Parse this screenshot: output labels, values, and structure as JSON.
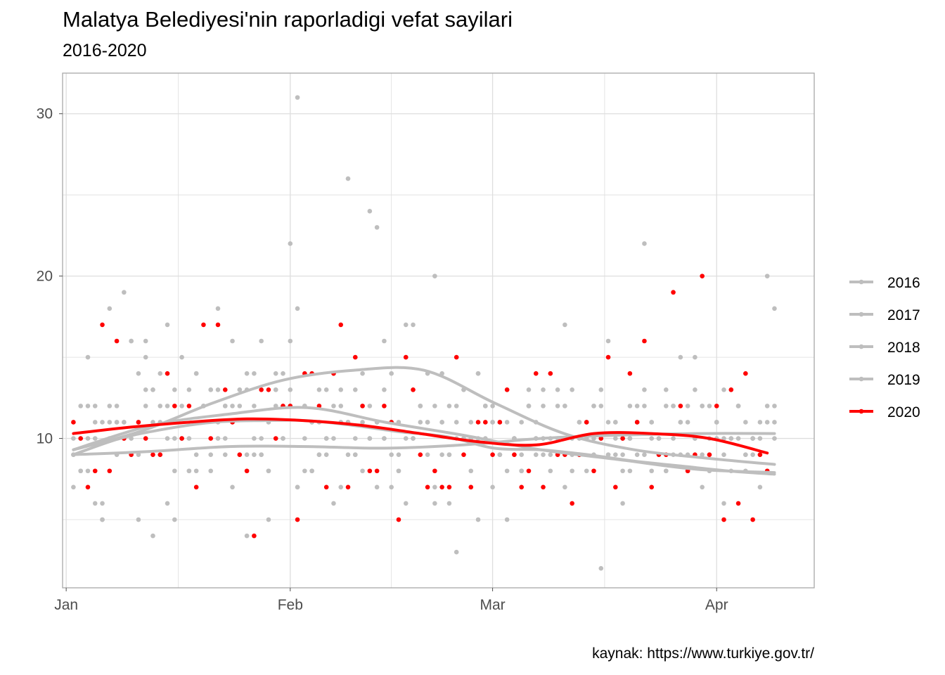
{
  "chart_data": {
    "type": "scatter",
    "title": "Malatya Belediyesi'nin raporladigi vefat sayilari",
    "subtitle": "2016-2020",
    "caption": "kaynak: https://www.turkiye.gov.tr/",
    "xlabel": "",
    "ylabel": "",
    "x_unit": "day of year",
    "xlim": [
      -0.5,
      103.5
    ],
    "ylim": [
      0.8,
      32.5
    ],
    "x_ticks": [
      {
        "value": 0,
        "label": "Jan"
      },
      {
        "value": 31,
        "label": "Feb"
      },
      {
        "value": 59,
        "label": "Mar"
      },
      {
        "value": 90,
        "label": "Apr"
      }
    ],
    "y_ticks": [
      {
        "value": 10,
        "label": "10"
      },
      {
        "value": 20,
        "label": "20"
      },
      {
        "value": 30,
        "label": "30"
      }
    ],
    "y_minor": [
      5,
      15,
      25
    ],
    "x_minor": [
      15.5,
      45,
      74.5
    ],
    "legend_position": "right",
    "colors": {
      "background_years": "#bebebe",
      "highlight": "#ff0000",
      "grid": "#dedede",
      "frame": "#a8a8a8"
    },
    "series": [
      {
        "name": "2016",
        "color": "#bebebe",
        "x": [
          1,
          2,
          3,
          4,
          5,
          6,
          7,
          8,
          9,
          10,
          11,
          12,
          13,
          14,
          15,
          16,
          17,
          18,
          19,
          20,
          21,
          22,
          23,
          24,
          25,
          26,
          27,
          28,
          29,
          30,
          31,
          32,
          33,
          34,
          35,
          36,
          37,
          38,
          39,
          40,
          41,
          42,
          43,
          44,
          45,
          46,
          47,
          48,
          49,
          50,
          51,
          52,
          53,
          54,
          55,
          56,
          57,
          58,
          59,
          60,
          61,
          62,
          63,
          64,
          65,
          66,
          67,
          68,
          69,
          70,
          71,
          72,
          73,
          74,
          75,
          76,
          77,
          78,
          79,
          80,
          81,
          82,
          83,
          84,
          85,
          86,
          87,
          88,
          89,
          90,
          91,
          92,
          93,
          94,
          95,
          96,
          97,
          98
        ],
        "y": [
          9,
          12,
          10,
          6,
          11,
          18,
          12,
          11,
          10,
          14,
          15,
          13,
          11,
          12,
          8,
          10,
          13,
          14,
          12,
          9,
          13,
          12,
          16,
          13,
          9,
          14,
          9,
          11,
          12,
          10,
          13,
          7,
          12,
          8,
          11,
          9,
          12,
          13,
          11,
          10,
          8,
          12,
          11,
          10,
          7,
          9,
          15,
          13,
          12,
          11,
          6,
          11,
          9,
          12,
          10,
          11,
          5,
          10,
          12,
          9,
          11,
          10,
          8,
          12,
          10,
          9,
          8,
          13,
          12,
          10,
          11,
          8,
          9,
          12,
          9,
          10,
          6,
          10,
          11,
          9,
          8,
          10,
          12,
          9,
          11,
          8,
          13,
          9,
          8,
          10,
          9,
          8,
          10,
          8,
          9,
          7,
          8,
          10
        ],
        "trend": [
          9.3,
          10.8,
          11.5,
          11.9,
          11.0,
          10.2,
          9.3,
          8.7,
          8.1,
          7.9
        ]
      },
      {
        "name": "2017",
        "color": "#bebebe",
        "x": [
          1,
          2,
          3,
          4,
          5,
          6,
          7,
          8,
          9,
          10,
          11,
          12,
          13,
          14,
          15,
          16,
          17,
          18,
          19,
          20,
          21,
          22,
          23,
          24,
          25,
          26,
          27,
          28,
          29,
          30,
          31,
          32,
          33,
          34,
          35,
          36,
          37,
          38,
          39,
          40,
          41,
          42,
          43,
          44,
          45,
          46,
          47,
          48,
          49,
          50,
          51,
          52,
          53,
          54,
          55,
          56,
          57,
          58,
          59,
          60,
          61,
          62,
          63,
          64,
          65,
          66,
          67,
          68,
          69,
          70,
          71,
          72,
          73,
          74,
          75,
          76,
          77,
          78,
          79,
          80,
          81,
          82,
          83,
          84,
          85,
          86,
          87,
          88,
          89,
          90,
          91,
          92,
          93,
          94,
          95,
          96,
          97,
          98
        ],
        "y": [
          7,
          8,
          15,
          11,
          5,
          11,
          9,
          19,
          16,
          5,
          16,
          11,
          14,
          10,
          13,
          15,
          10,
          8,
          12,
          8,
          18,
          12,
          11,
          13,
          14,
          9,
          16,
          8,
          13,
          12,
          16,
          18,
          10,
          11,
          9,
          10,
          14,
          7,
          9,
          13,
          12,
          10,
          11,
          16,
          14,
          8,
          10,
          17,
          11,
          9,
          12,
          14,
          6,
          11,
          13,
          10,
          10,
          12,
          11,
          9,
          5,
          10,
          9,
          13,
          10,
          12,
          9,
          10,
          7,
          8,
          9,
          11,
          12,
          10,
          9,
          11,
          8,
          10,
          9,
          12,
          11,
          10,
          13,
          12,
          9,
          11,
          10,
          12,
          9,
          11,
          10,
          13,
          12,
          11,
          10,
          10,
          11,
          11
        ],
        "trend": [
          9.0,
          9.2,
          9.5,
          9.5,
          9.4,
          9.6,
          10.0,
          10.2,
          10.3,
          10.3
        ]
      },
      {
        "name": "2018",
        "color": "#bebebe",
        "x": [
          1,
          2,
          3,
          4,
          5,
          6,
          7,
          8,
          9,
          10,
          11,
          12,
          13,
          14,
          15,
          16,
          17,
          18,
          19,
          20,
          21,
          22,
          23,
          24,
          25,
          26,
          27,
          28,
          29,
          30,
          31,
          32,
          33,
          34,
          35,
          36,
          37,
          38,
          39,
          40,
          41,
          42,
          43,
          44,
          45,
          46,
          47,
          48,
          49,
          50,
          51,
          52,
          53,
          54,
          55,
          56,
          57,
          58,
          59,
          60,
          61,
          62,
          63,
          64,
          65,
          66,
          67,
          68,
          69,
          70,
          71,
          72,
          73,
          74,
          75,
          76,
          77,
          78,
          79,
          80,
          81,
          82,
          83,
          84,
          85,
          86,
          87,
          88,
          89,
          90,
          91,
          92,
          93,
          94,
          95,
          96,
          97,
          98
        ],
        "y": [
          9,
          10,
          8,
          12,
          6,
          10,
          11,
          11,
          16,
          9,
          12,
          13,
          9,
          17,
          10,
          12,
          8,
          9,
          12,
          13,
          11,
          10,
          12,
          9,
          13,
          12,
          10,
          8,
          13,
          14,
          12,
          31,
          8,
          11,
          9,
          13,
          10,
          11,
          26,
          9,
          11,
          24,
          23,
          10,
          9,
          11,
          17,
          10,
          12,
          11,
          20,
          9,
          12,
          3,
          10,
          7,
          14,
          12,
          11,
          9,
          8,
          10,
          11,
          12,
          9,
          13,
          10,
          12,
          17,
          9,
          10,
          11,
          10,
          2,
          16,
          11,
          9,
          12,
          11,
          22,
          10,
          9,
          8,
          12,
          11,
          9,
          15,
          12,
          10,
          11,
          6,
          10,
          12,
          9,
          10,
          11,
          12,
          12
        ],
        "trend": [
          9.3,
          10.5,
          12.2,
          13.6,
          14.2,
          14.2,
          12.2,
          10.3,
          9.3,
          8.8,
          8.4
        ]
      },
      {
        "name": "2019",
        "color": "#bebebe",
        "x": [
          1,
          2,
          3,
          4,
          5,
          6,
          7,
          8,
          9,
          10,
          11,
          12,
          13,
          14,
          15,
          16,
          17,
          18,
          19,
          20,
          21,
          22,
          23,
          24,
          25,
          26,
          27,
          28,
          29,
          30,
          31,
          32,
          33,
          34,
          35,
          36,
          37,
          38,
          39,
          40,
          41,
          42,
          43,
          44,
          45,
          46,
          47,
          48,
          49,
          50,
          51,
          52,
          53,
          54,
          55,
          56,
          57,
          58,
          59,
          60,
          61,
          62,
          63,
          64,
          65,
          66,
          67,
          68,
          69,
          70,
          71,
          72,
          73,
          74,
          75,
          76,
          77,
          78,
          79,
          80,
          81,
          82,
          83,
          84,
          85,
          86,
          87,
          88,
          89,
          90,
          91,
          92,
          93,
          94,
          95,
          96,
          97,
          98
        ],
        "y": [
          10,
          8,
          12,
          10,
          5,
          12,
          11,
          10,
          9,
          11,
          13,
          4,
          12,
          6,
          5,
          10,
          8,
          14,
          11,
          13,
          10,
          9,
          7,
          12,
          4,
          10,
          9,
          5,
          14,
          10,
          22,
          7,
          12,
          8,
          13,
          10,
          6,
          12,
          11,
          9,
          14,
          10,
          7,
          13,
          11,
          8,
          6,
          10,
          12,
          14,
          7,
          11,
          9,
          10,
          13,
          8,
          14,
          12,
          7,
          11,
          13,
          9,
          8,
          12,
          11,
          10,
          14,
          9,
          12,
          13,
          11,
          10,
          12,
          13,
          11,
          9,
          10,
          8,
          12,
          13,
          11,
          9,
          8,
          10,
          15,
          12,
          10,
          7,
          12,
          11,
          13,
          10,
          12,
          9,
          10,
          9,
          20,
          18
        ],
        "trend": [
          9.0,
          10.0,
          10.6,
          11.0,
          11.1,
          11.1,
          10.8,
          10.4,
          10.1,
          9.4,
          9.3,
          9.0,
          8.6,
          8.3,
          8.0,
          7.8
        ]
      },
      {
        "name": "2020",
        "color": "#ff0000",
        "x": [
          1,
          2,
          3,
          4,
          5,
          6,
          7,
          8,
          9,
          10,
          11,
          12,
          13,
          14,
          15,
          16,
          17,
          18,
          19,
          20,
          21,
          22,
          23,
          24,
          25,
          26,
          27,
          28,
          29,
          30,
          31,
          32,
          33,
          34,
          35,
          36,
          37,
          38,
          39,
          40,
          41,
          42,
          43,
          44,
          45,
          46,
          47,
          48,
          49,
          50,
          51,
          52,
          53,
          54,
          55,
          56,
          57,
          58,
          59,
          60,
          61,
          62,
          63,
          64,
          65,
          66,
          67,
          68,
          69,
          70,
          71,
          72,
          73,
          74,
          75,
          76,
          77,
          78,
          79,
          80,
          81,
          82,
          83,
          84,
          85,
          86,
          87,
          88,
          89,
          90,
          91,
          92,
          93,
          94,
          95,
          96,
          97
        ],
        "y": [
          11,
          10,
          7,
          8,
          17,
          8,
          16,
          10,
          9,
          11,
          10,
          9,
          9,
          14,
          12,
          10,
          12,
          7,
          17,
          10,
          17,
          13,
          11,
          9,
          8,
          4,
          13,
          13,
          10,
          12,
          12,
          5,
          14,
          14,
          12,
          7,
          14,
          17,
          7,
          15,
          12,
          8,
          8,
          12,
          11,
          5,
          15,
          13,
          9,
          7,
          8,
          7,
          7,
          15,
          9,
          7,
          11,
          11,
          9,
          11,
          13,
          9,
          7,
          8,
          14,
          7,
          14,
          9,
          9,
          6,
          9,
          11,
          8,
          10,
          15,
          7,
          10,
          14,
          11,
          16,
          7,
          9,
          9,
          19,
          12,
          8,
          9,
          20,
          9,
          12,
          5,
          13,
          6,
          14,
          5,
          9,
          8
        ],
        "trend": [
          10.3,
          10.7,
          11.0,
          11.2,
          11.1,
          10.8,
          10.3,
          9.8,
          9.6,
          10.3,
          10.3,
          10.0,
          9.1
        ]
      }
    ]
  }
}
